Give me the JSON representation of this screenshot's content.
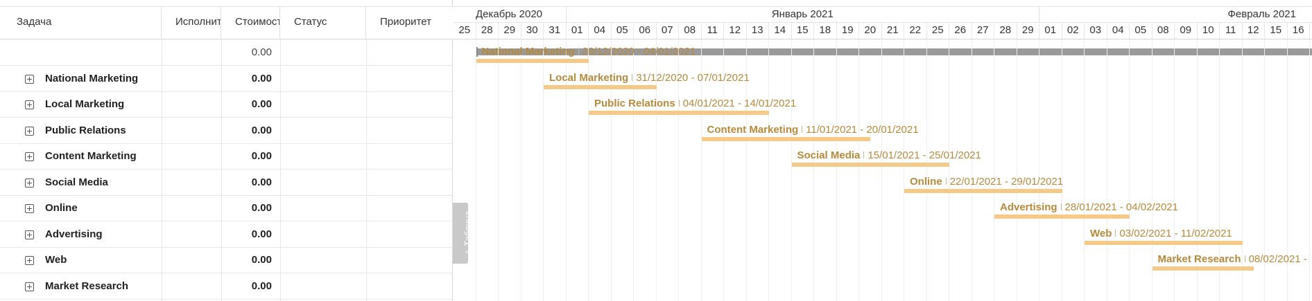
{
  "table": {
    "headers": [
      "Задача",
      "Исполнит",
      "Стоимост",
      "Статус",
      "Приоритет"
    ],
    "total_cost": "0.00",
    "rows": [
      {
        "name": "National Marketing",
        "cost": "0.00"
      },
      {
        "name": "Local Marketing",
        "cost": "0.00"
      },
      {
        "name": "Public Relations",
        "cost": "0.00"
      },
      {
        "name": "Content Marketing",
        "cost": "0.00"
      },
      {
        "name": "Social Media",
        "cost": "0.00"
      },
      {
        "name": "Online",
        "cost": "0.00"
      },
      {
        "name": "Advertising",
        "cost": "0.00"
      },
      {
        "name": "Web",
        "cost": "0.00"
      },
      {
        "name": "Market Research",
        "cost": "0.00"
      }
    ],
    "side_tab_label": "△ Таблица"
  },
  "gantt": {
    "months": [
      "Декабрь 2020",
      "Январь 2021",
      "Февраль 2021"
    ],
    "days": [
      "25",
      "28",
      "29",
      "30",
      "31",
      "01",
      "04",
      "05",
      "06",
      "07",
      "08",
      "11",
      "12",
      "13",
      "14",
      "15",
      "18",
      "19",
      "20",
      "21",
      "22",
      "25",
      "26",
      "27",
      "28",
      "29",
      "01",
      "02",
      "03",
      "04",
      "05",
      "08",
      "09",
      "10",
      "11",
      "12",
      "15",
      "16"
    ],
    "tasks": [
      {
        "name": "National Marketing",
        "dates": "28/12/2020 - 04/01/2021"
      },
      {
        "name": "Local Marketing",
        "dates": "31/12/2020 - 07/01/2021"
      },
      {
        "name": "Public Relations",
        "dates": "04/01/2021 - 14/01/2021"
      },
      {
        "name": "Content Marketing",
        "dates": "11/01/2021 - 20/01/2021"
      },
      {
        "name": "Social Media",
        "dates": "15/01/2021 - 25/01/2021"
      },
      {
        "name": "Online",
        "dates": "22/01/2021 - 29/01/2021"
      },
      {
        "name": "Advertising",
        "dates": "28/01/2021 - 04/02/2021"
      },
      {
        "name": "Web",
        "dates": "03/02/2021 - 11/02/2021"
      },
      {
        "name": "Market Research",
        "dates": "08/02/2021 - "
      }
    ],
    "colors": {
      "bar": "#f5c987",
      "label": "#b7893b",
      "summary": "#9a9a9a"
    }
  }
}
